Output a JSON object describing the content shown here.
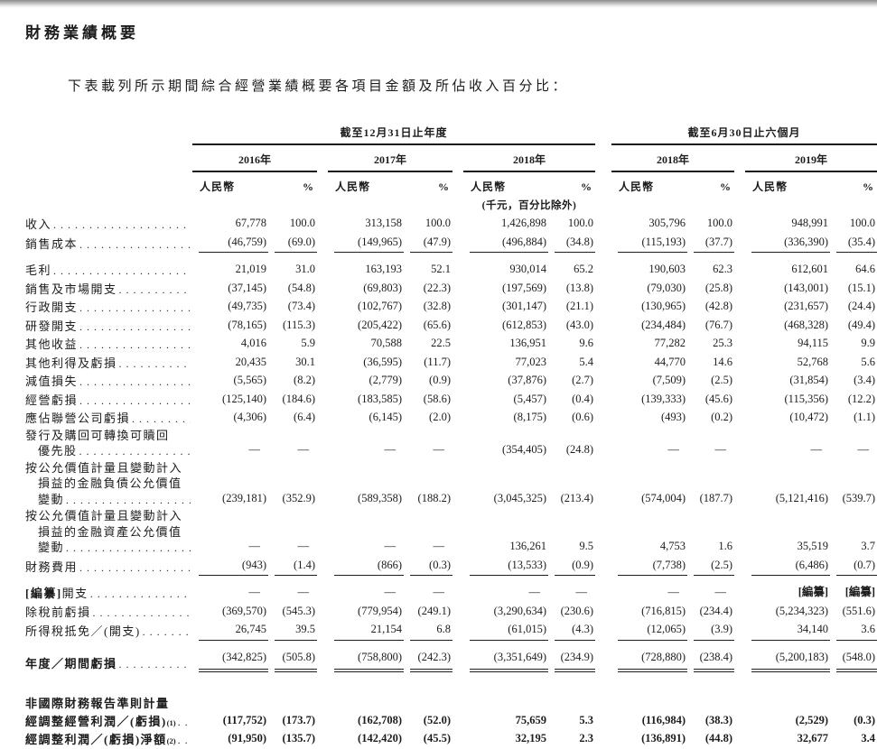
{
  "page": {
    "title": "財務業績概要",
    "intro": "下表載列所示期間綜合經營業績概要各項目金額及所佔收入百分比："
  },
  "table": {
    "periods": [
      "截至12月31日止年度",
      "截至6月30日止六個月"
    ],
    "years": [
      "2016年",
      "2017年",
      "2018年",
      "2018年",
      "2019年"
    ],
    "col_currency": "人民幣",
    "col_percent": "%",
    "unit_note": "(千元，百分比除外)",
    "rows": [
      {
        "id": "revenue",
        "lines": [
          "收入"
        ],
        "leaders": true,
        "values": [
          "67,778",
          "100.0",
          "313,158",
          "100.0",
          "1,426,898",
          "100.0",
          "305,796",
          "100.0",
          "948,991",
          "100.0"
        ]
      },
      {
        "id": "cost-of-sales",
        "lines": [
          "銷售成本"
        ],
        "leaders": true,
        "rule": "single",
        "values": [
          "(46,759)",
          "(69.0)",
          "(149,965)",
          "(47.9)",
          "(496,884)",
          "(34.8)",
          "(115,193)",
          "(37.7)",
          "(336,390)",
          "(35.4)"
        ]
      },
      {
        "id": "gross-profit",
        "lines": [
          "毛利"
        ],
        "leaders": true,
        "gap": "sm",
        "values": [
          "21,019",
          "31.0",
          "163,193",
          "52.1",
          "930,014",
          "65.2",
          "190,603",
          "62.3",
          "612,601",
          "64.6"
        ]
      },
      {
        "id": "selling-marketing-expenses",
        "lines": [
          "銷售及市場開支"
        ],
        "leaders": true,
        "values": [
          "(37,145)",
          "(54.8)",
          "(69,803)",
          "(22.3)",
          "(197,569)",
          "(13.8)",
          "(79,030)",
          "(25.8)",
          "(143,001)",
          "(15.1)"
        ]
      },
      {
        "id": "administrative-expenses",
        "lines": [
          "行政開支"
        ],
        "leaders": true,
        "values": [
          "(49,735)",
          "(73.4)",
          "(102,767)",
          "(32.8)",
          "(301,147)",
          "(21.1)",
          "(130,965)",
          "(42.8)",
          "(231,657)",
          "(24.4)"
        ]
      },
      {
        "id": "rd-expenses",
        "lines": [
          "研發開支"
        ],
        "leaders": true,
        "values": [
          "(78,165)",
          "(115.3)",
          "(205,422)",
          "(65.6)",
          "(612,853)",
          "(43.0)",
          "(234,484)",
          "(76.7)",
          "(468,328)",
          "(49.4)"
        ]
      },
      {
        "id": "other-income",
        "lines": [
          "其他收益"
        ],
        "leaders": true,
        "values": [
          "4,016",
          "5.9",
          "70,588",
          "22.5",
          "136,951",
          "9.6",
          "77,282",
          "25.3",
          "94,115",
          "9.9"
        ]
      },
      {
        "id": "other-gains-losses",
        "lines": [
          "其他利得及虧損"
        ],
        "leaders": true,
        "values": [
          "20,435",
          "30.1",
          "(36,595)",
          "(11.7)",
          "77,023",
          "5.4",
          "44,770",
          "14.6",
          "52,768",
          "5.6"
        ]
      },
      {
        "id": "impairment-losses",
        "lines": [
          "減值損失"
        ],
        "leaders": true,
        "values": [
          "(5,565)",
          "(8.2)",
          "(2,779)",
          "(0.9)",
          "(37,876)",
          "(2.7)",
          "(7,509)",
          "(2.5)",
          "(31,854)",
          "(3.4)"
        ]
      },
      {
        "id": "operating-loss",
        "lines": [
          "經營虧損"
        ],
        "leaders": true,
        "values": [
          "(125,140)",
          "(184.6)",
          "(183,585)",
          "(58.6)",
          "(5,457)",
          "(0.4)",
          "(139,333)",
          "(45.6)",
          "(115,356)",
          "(12.2)"
        ]
      },
      {
        "id": "share-of-losses-of-associates",
        "lines": [
          "應佔聯營公司虧損"
        ],
        "leaders": true,
        "values": [
          "(4,306)",
          "(6.4)",
          "(6,145)",
          "(2.0)",
          "(8,175)",
          "(0.6)",
          "(493)",
          "(0.2)",
          "(10,472)",
          "(1.1)"
        ]
      },
      {
        "id": "preferred-shares-issue-repurchase",
        "leaders": true,
        "lines": [
          "發行及購回可轉換可贖回",
          {
            "t": "優先股",
            "indent": true
          }
        ],
        "values": [
          "—",
          "—",
          "—",
          "—",
          "(354,405)",
          "(24.8)",
          "—",
          "—",
          "—",
          "—"
        ]
      },
      {
        "id": "fv-change-financial-liabilities",
        "leaders": true,
        "lines": [
          "按公允價值計量且變動計入",
          {
            "t": "損益的金融負債公允價值",
            "indent": true
          },
          {
            "t": "變動",
            "indent": true
          }
        ],
        "values": [
          "(239,181)",
          "(352.9)",
          "(589,358)",
          "(188.2)",
          "(3,045,325)",
          "(213.4)",
          "(574,004)",
          "(187.7)",
          "(5,121,416)",
          "(539.7)"
        ]
      },
      {
        "id": "fv-change-financial-assets",
        "leaders": true,
        "lines": [
          "按公允價值計量且變動計入",
          {
            "t": "損益的金融資產公允價值",
            "indent": true
          },
          {
            "t": "變動",
            "indent": true
          }
        ],
        "values": [
          "—",
          "—",
          "—",
          "—",
          "136,261",
          "9.5",
          "4,753",
          "1.6",
          "35,519",
          "3.7"
        ]
      },
      {
        "id": "finance-costs",
        "lines": [
          "財務費用"
        ],
        "leaders": true,
        "rule": "single",
        "values": [
          "(943)",
          "(1.4)",
          "(866)",
          "(0.3)",
          "(13,533)",
          "(0.9)",
          "(7,738)",
          "(2.5)",
          "(6,486)",
          "(0.7)"
        ]
      },
      {
        "id": "redacted-expenses",
        "leaders": true,
        "gap": "sm",
        "lines": [
          {
            "segs": [
              {
                "t": "[編纂]",
                "b": true
              },
              {
                "t": "開支"
              }
            ]
          }
        ],
        "values": [
          "—",
          "—",
          "—",
          "—",
          "—",
          "—",
          "—",
          "—",
          {
            "t": "[編纂]",
            "b": true
          },
          {
            "t": "[編纂]",
            "b": true
          }
        ]
      },
      {
        "id": "loss-before-tax",
        "lines": [
          "除稅前虧損"
        ],
        "leaders": true,
        "values": [
          "(369,570)",
          "(545.3)",
          "(779,954)",
          "(249.1)",
          "(3,290,634)",
          "(230.6)",
          "(716,815)",
          "(234.4)",
          "(5,234,323)",
          "(551.6)"
        ]
      },
      {
        "id": "income-tax-credit-expense",
        "lines": [
          "所得稅抵免／(開支)"
        ],
        "leaders": true,
        "rule": "single",
        "values": [
          "26,745",
          "39.5",
          "21,154",
          "6.8",
          "(61,015)",
          "(4.3)",
          "(12,065)",
          "(3.9)",
          "34,140",
          "3.6"
        ]
      },
      {
        "id": "loss-for-year-period",
        "lines": [
          "年度／期間虧損"
        ],
        "leaders": true,
        "bold_label": true,
        "rule": "double",
        "gap": "sm",
        "values": [
          "(342,825)",
          "(505.8)",
          "(758,800)",
          "(242.3)",
          "(3,351,649)",
          "(234.9)",
          "(728,880)",
          "(238.4)",
          "(5,200,183)",
          "(548.0)"
        ]
      },
      {
        "id": "non-ifrs-measures-heading",
        "lines": [
          "非國際財務報告準則計量"
        ],
        "leaders": false,
        "bold_label": true,
        "gap": "lg",
        "values": null
      },
      {
        "id": "adjusted-operating-profit-loss",
        "leaders": true,
        "bold_label": true,
        "bold_values": true,
        "lines": [
          {
            "segs": [
              {
                "t": "經調整經營利潤／(虧損)"
              },
              {
                "t": "(1)",
                "sup": true
              }
            ]
          }
        ],
        "values": [
          "(117,752)",
          "(173.7)",
          "(162,708)",
          "(52.0)",
          "75,659",
          "5.3",
          "(116,984)",
          "(38.3)",
          "(2,529)",
          "(0.3)"
        ]
      },
      {
        "id": "adjusted-net-profit-loss",
        "leaders": true,
        "bold_label": true,
        "bold_values": true,
        "lines": [
          {
            "segs": [
              {
                "t": "經調整利潤／(虧損)淨額"
              },
              {
                "t": "(2)",
                "sup": true
              }
            ]
          }
        ],
        "values": [
          "(91,950)",
          "(135.7)",
          "(142,420)",
          "(45.5)",
          "32,195",
          "2.3",
          "(136,891)",
          "(44.8)",
          "32,677",
          "3.4"
        ]
      }
    ]
  }
}
